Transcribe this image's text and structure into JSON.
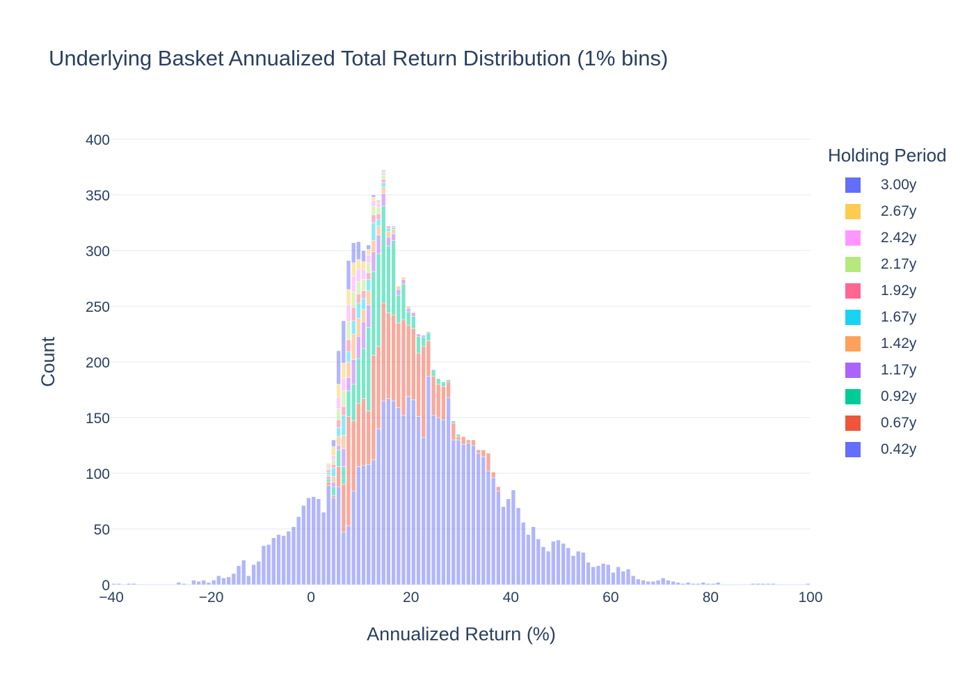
{
  "chart_data": {
    "type": "bar",
    "barmode": "stack",
    "title": "Underlying Basket Annualized Total Return Distribution (1% bins)",
    "xlabel": "Annualized Return (%)",
    "ylabel": "Count",
    "xlim": [
      -40,
      100
    ],
    "ylim": [
      0,
      400
    ],
    "bin_width": 1,
    "x_ticks": [
      -40,
      -20,
      0,
      20,
      40,
      60,
      80,
      100
    ],
    "x_tick_labels": [
      "−40",
      "−20",
      "0",
      "20",
      "40",
      "60",
      "80",
      "100"
    ],
    "y_ticks": [
      0,
      50,
      100,
      150,
      200,
      250,
      300,
      350,
      400
    ],
    "grid": true,
    "bar_opacity": 0.5,
    "legend_title": "Holding Period",
    "legend_position": "right",
    "series": [
      {
        "name": "0.42y",
        "color": "#636efa",
        "bins": [
          [
            -40,
            1
          ],
          [
            -39,
            1
          ],
          [
            -37,
            1
          ],
          [
            -36,
            1
          ],
          [
            -27,
            2
          ],
          [
            -26,
            1
          ],
          [
            -24,
            4
          ],
          [
            -23,
            3
          ],
          [
            -22,
            4
          ],
          [
            -21,
            2
          ],
          [
            -20,
            4
          ],
          [
            -19,
            8
          ],
          [
            -18,
            6
          ],
          [
            -17,
            7
          ],
          [
            -16,
            10
          ],
          [
            -15,
            17
          ],
          [
            -14,
            22
          ],
          [
            -13,
            8
          ],
          [
            -12,
            18
          ],
          [
            -11,
            21
          ],
          [
            -10,
            35
          ],
          [
            -9,
            36
          ],
          [
            -8,
            42
          ],
          [
            -7,
            45
          ],
          [
            -6,
            44
          ],
          [
            -5,
            48
          ],
          [
            -4,
            52
          ],
          [
            -3,
            61
          ],
          [
            -2,
            71
          ],
          [
            -1,
            78
          ],
          [
            0,
            79
          ],
          [
            1,
            77
          ],
          [
            2,
            65
          ],
          [
            3,
            89
          ],
          [
            4,
            78
          ],
          [
            5,
            88
          ],
          [
            6,
            47
          ],
          [
            7,
            53
          ],
          [
            8,
            84
          ],
          [
            9,
            106
          ],
          [
            10,
            107
          ],
          [
            11,
            108
          ],
          [
            12,
            112
          ],
          [
            13,
            140
          ],
          [
            14,
            165
          ],
          [
            15,
            167
          ],
          [
            16,
            165
          ],
          [
            17,
            159
          ],
          [
            18,
            152
          ],
          [
            19,
            169
          ],
          [
            20,
            166
          ],
          [
            21,
            151
          ],
          [
            22,
            132
          ],
          [
            23,
            187
          ],
          [
            24,
            152
          ],
          [
            25,
            150
          ],
          [
            26,
            148
          ],
          [
            27,
            168
          ],
          [
            28,
            130
          ],
          [
            29,
            130
          ],
          [
            30,
            126
          ],
          [
            31,
            127
          ],
          [
            32,
            125
          ],
          [
            33,
            118
          ],
          [
            34,
            115
          ],
          [
            35,
            102
          ],
          [
            36,
            96
          ],
          [
            37,
            84
          ],
          [
            38,
            70
          ],
          [
            39,
            77
          ],
          [
            40,
            85
          ],
          [
            41,
            69
          ],
          [
            42,
            56
          ],
          [
            43,
            45
          ],
          [
            44,
            52
          ],
          [
            45,
            41
          ],
          [
            46,
            34
          ],
          [
            47,
            30
          ],
          [
            48,
            39
          ],
          [
            49,
            40
          ],
          [
            50,
            37
          ],
          [
            51,
            33
          ],
          [
            52,
            26
          ],
          [
            53,
            30
          ],
          [
            54,
            29
          ],
          [
            55,
            20
          ],
          [
            56,
            16
          ],
          [
            57,
            17
          ],
          [
            58,
            19
          ],
          [
            59,
            18
          ],
          [
            60,
            11
          ],
          [
            61,
            16
          ],
          [
            62,
            12
          ],
          [
            63,
            14
          ],
          [
            64,
            8
          ],
          [
            65,
            5
          ],
          [
            66,
            4
          ],
          [
            67,
            3
          ],
          [
            68,
            3
          ],
          [
            69,
            4
          ],
          [
            70,
            6
          ],
          [
            71,
            4
          ],
          [
            72,
            3
          ],
          [
            73,
            2
          ],
          [
            74,
            1
          ],
          [
            75,
            2
          ],
          [
            76,
            1
          ],
          [
            77,
            1
          ],
          [
            78,
            2
          ],
          [
            79,
            1
          ],
          [
            80,
            1
          ],
          [
            81,
            2
          ],
          [
            88,
            1
          ],
          [
            89,
            1
          ],
          [
            90,
            1
          ],
          [
            91,
            1
          ],
          [
            92,
            1
          ],
          [
            99,
            1
          ]
        ]
      },
      {
        "name": "0.67y",
        "color": "#ef553b",
        "bins": [
          [
            3,
            3
          ],
          [
            4,
            2
          ],
          [
            5,
            18
          ],
          [
            6,
            43
          ],
          [
            7,
            98
          ],
          [
            8,
            63
          ],
          [
            9,
            57
          ],
          [
            10,
            60
          ],
          [
            11,
            48
          ],
          [
            12,
            94
          ],
          [
            13,
            74
          ],
          [
            14,
            88
          ],
          [
            15,
            77
          ],
          [
            16,
            77
          ],
          [
            17,
            76
          ],
          [
            18,
            86
          ],
          [
            19,
            64
          ],
          [
            20,
            64
          ],
          [
            21,
            57
          ],
          [
            22,
            82
          ],
          [
            23,
            32
          ],
          [
            24,
            35
          ],
          [
            25,
            30
          ],
          [
            26,
            30
          ],
          [
            27,
            14
          ],
          [
            28,
            15
          ],
          [
            29,
            3
          ],
          [
            30,
            7
          ],
          [
            31,
            3
          ],
          [
            32,
            5
          ],
          [
            33,
            3
          ],
          [
            34,
            6
          ],
          [
            35,
            16
          ],
          [
            36,
            5
          ],
          [
            37,
            4
          ]
        ]
      },
      {
        "name": "0.92y",
        "color": "#00cc96",
        "bins": [
          [
            3,
            3
          ],
          [
            4,
            8
          ],
          [
            5,
            15
          ],
          [
            6,
            16
          ],
          [
            7,
            23
          ],
          [
            8,
            33
          ],
          [
            9,
            40
          ],
          [
            10,
            45
          ],
          [
            11,
            75
          ],
          [
            12,
            75
          ],
          [
            13,
            83
          ],
          [
            14,
            87
          ],
          [
            15,
            60
          ],
          [
            16,
            67
          ],
          [
            17,
            25
          ],
          [
            18,
            32
          ],
          [
            19,
            12
          ],
          [
            20,
            11
          ],
          [
            21,
            15
          ],
          [
            22,
            8
          ],
          [
            23,
            7
          ],
          [
            24,
            6
          ],
          [
            25,
            5
          ],
          [
            26,
            4
          ],
          [
            27,
            2
          ],
          [
            28,
            2
          ],
          [
            29,
            2
          ]
        ]
      },
      {
        "name": "1.17y",
        "color": "#ab63fa",
        "bins": [
          [
            3,
            2
          ],
          [
            4,
            4
          ],
          [
            5,
            4
          ],
          [
            6,
            16
          ],
          [
            7,
            12
          ],
          [
            8,
            22
          ],
          [
            9,
            20
          ],
          [
            10,
            24
          ],
          [
            11,
            20
          ],
          [
            12,
            18
          ],
          [
            13,
            17
          ],
          [
            14,
            11
          ],
          [
            15,
            8
          ],
          [
            16,
            6
          ],
          [
            17,
            5
          ],
          [
            18,
            4
          ],
          [
            19,
            3
          ],
          [
            20,
            3
          ],
          [
            21,
            2
          ],
          [
            22,
            2
          ],
          [
            23,
            1
          ]
        ]
      },
      {
        "name": "1.42y",
        "color": "#ffa15a",
        "bins": [
          [
            3,
            2
          ],
          [
            4,
            5
          ],
          [
            5,
            8
          ],
          [
            6,
            12
          ],
          [
            7,
            14
          ],
          [
            8,
            23
          ],
          [
            9,
            16
          ],
          [
            10,
            11
          ],
          [
            11,
            13
          ],
          [
            12,
            10
          ],
          [
            13,
            8
          ],
          [
            14,
            6
          ],
          [
            15,
            5
          ],
          [
            16,
            4
          ],
          [
            17,
            3
          ],
          [
            18,
            2
          ],
          [
            19,
            2
          ],
          [
            20,
            1
          ]
        ]
      },
      {
        "name": "1.67y",
        "color": "#19d3f3",
        "bins": [
          [
            3,
            2
          ],
          [
            4,
            8
          ],
          [
            5,
            8
          ],
          [
            6,
            18
          ],
          [
            7,
            9
          ],
          [
            8,
            12
          ],
          [
            9,
            14
          ],
          [
            10,
            10
          ],
          [
            11,
            10
          ],
          [
            12,
            16
          ],
          [
            13,
            6
          ],
          [
            14,
            4
          ],
          [
            15,
            3
          ],
          [
            16,
            2
          ]
        ]
      },
      {
        "name": "1.92y",
        "color": "#ff6692",
        "bins": [
          [
            3,
            2
          ],
          [
            4,
            3
          ],
          [
            5,
            7
          ],
          [
            6,
            8
          ],
          [
            7,
            11
          ],
          [
            8,
            12
          ],
          [
            9,
            8
          ],
          [
            10,
            7
          ],
          [
            11,
            6
          ],
          [
            12,
            7
          ],
          [
            13,
            5
          ],
          [
            14,
            3
          ],
          [
            15,
            2
          ],
          [
            16,
            1
          ]
        ]
      },
      {
        "name": "2.17y",
        "color": "#b6e880",
        "bins": [
          [
            3,
            2
          ],
          [
            4,
            4
          ],
          [
            5,
            10
          ],
          [
            6,
            14
          ],
          [
            7,
            16
          ],
          [
            8,
            14
          ],
          [
            9,
            11
          ],
          [
            10,
            10
          ],
          [
            11,
            9
          ],
          [
            12,
            8
          ],
          [
            13,
            6
          ],
          [
            14,
            4
          ]
        ]
      },
      {
        "name": "2.42y",
        "color": "#ff97ff",
        "bins": [
          [
            3,
            2
          ],
          [
            4,
            4
          ],
          [
            5,
            10
          ],
          [
            6,
            11
          ],
          [
            7,
            15
          ],
          [
            8,
            14
          ],
          [
            9,
            11
          ],
          [
            10,
            9
          ],
          [
            11,
            7
          ],
          [
            12,
            5
          ],
          [
            13,
            3
          ],
          [
            14,
            2
          ]
        ]
      },
      {
        "name": "2.67y",
        "color": "#fecb52",
        "bins": [
          [
            3,
            2
          ],
          [
            4,
            8
          ],
          [
            5,
            12
          ],
          [
            6,
            14
          ],
          [
            7,
            14
          ],
          [
            8,
            12
          ],
          [
            9,
            9
          ],
          [
            10,
            7
          ],
          [
            11,
            5
          ],
          [
            12,
            3
          ],
          [
            13,
            2
          ],
          [
            14,
            1
          ]
        ]
      },
      {
        "name": "3.00y",
        "color": "#636efa",
        "bins": [
          [
            4,
            6
          ],
          [
            5,
            30
          ],
          [
            6,
            38
          ],
          [
            7,
            26
          ],
          [
            8,
            18
          ],
          [
            9,
            16
          ],
          [
            10,
            10
          ],
          [
            11,
            4
          ],
          [
            12,
            2
          ],
          [
            13,
            1
          ],
          [
            14,
            1
          ]
        ]
      }
    ]
  }
}
